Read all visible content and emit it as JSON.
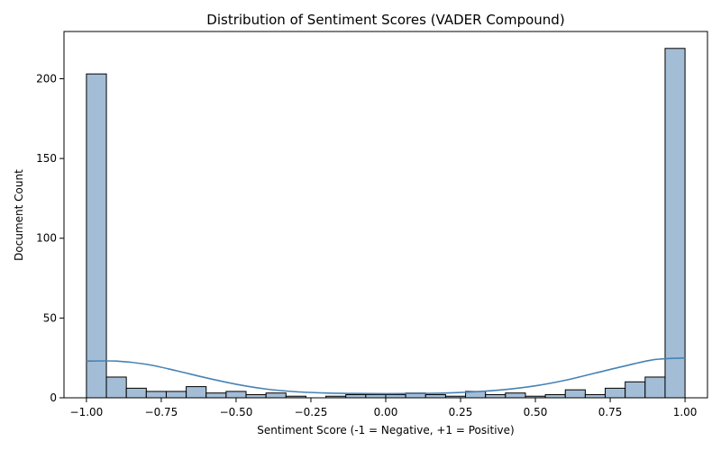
{
  "chart_data": {
    "type": "bar",
    "title": "Distribution of Sentiment Scores (VADER Compound)",
    "xlabel": "Sentiment Score (-1 = Negative, +1 = Positive)",
    "ylabel": "Document Count",
    "xlim": [
      -1.075,
      1.075
    ],
    "ylim": [
      0,
      229.6
    ],
    "xticks": [
      -1.0,
      -0.75,
      -0.5,
      -0.25,
      0.0,
      0.25,
      0.5,
      0.75,
      1.0
    ],
    "xtick_labels": [
      "−1.00",
      "−0.75",
      "−0.50",
      "−0.25",
      "0.00",
      "0.25",
      "0.50",
      "0.75",
      "1.00"
    ],
    "yticks": [
      0,
      50,
      100,
      150,
      200
    ],
    "ytick_labels": [
      "0",
      "50",
      "100",
      "150",
      "200"
    ],
    "grid": false,
    "bins": {
      "start": -1.0,
      "end": 1.0,
      "counts": [
        203,
        13,
        6,
        4,
        4,
        7,
        3,
        4,
        2,
        3,
        1,
        0,
        1,
        2,
        2,
        2,
        3,
        2,
        1,
        4,
        2,
        3,
        1,
        2,
        5,
        2,
        6,
        10,
        13,
        219
      ]
    },
    "kde": {
      "x": [
        -1.0,
        -0.9,
        -0.8,
        -0.7,
        -0.6,
        -0.5,
        -0.4,
        -0.3,
        -0.2,
        -0.1,
        0.0,
        0.1,
        0.2,
        0.3,
        0.4,
        0.5,
        0.6,
        0.7,
        0.8,
        0.9,
        1.0
      ],
      "y": [
        23,
        23,
        21,
        17,
        12.5,
        8.5,
        5.5,
        3.8,
        3.0,
        2.7,
        2.6,
        2.7,
        3.0,
        3.8,
        5.2,
        7.5,
        11,
        15.5,
        20,
        24,
        25
      ]
    },
    "colors": {
      "bar_fill": "#a3bdd6",
      "bar_edge": "#000000",
      "kde_line": "#4682b4"
    }
  }
}
